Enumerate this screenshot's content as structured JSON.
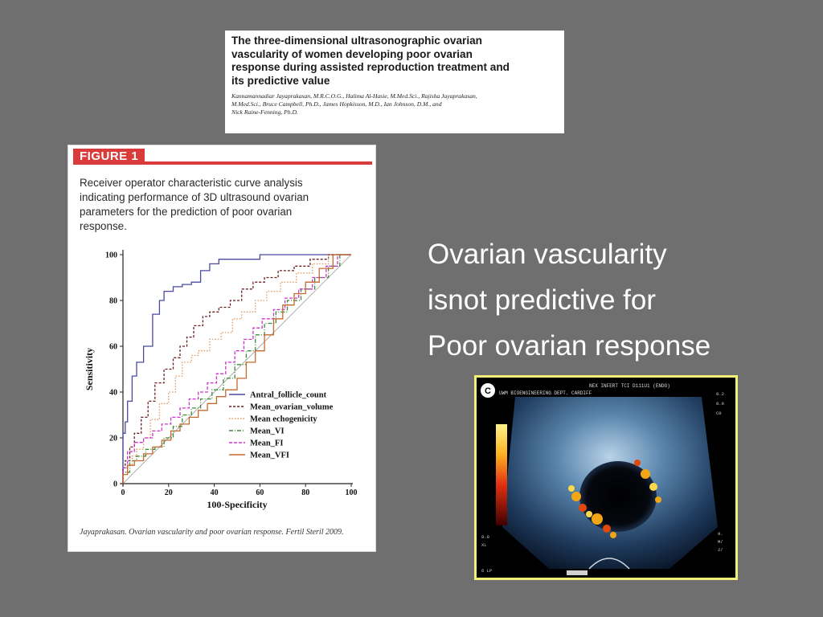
{
  "paper": {
    "title": "The three-dimensional ultrasonographic ovarian\nvascularity of women developing poor ovarian\nresponse during assisted reproduction treatment and\nits predictive value",
    "authors": "Kannamannadiar Jayaprakasan, M.R.C.O.G., Halima Al-Hasie, M.Med.Sci., Rajisha Jayaprakasan,\nM.Med.Sci., Bruce Campbell, Ph.D., James Hopkisson, M.D., Ian Johnson, D.M., and\nNick Raine-Fenning, Ph.D."
  },
  "figure": {
    "label": "FIGURE 1",
    "caption": "Receiver operator characteristic curve analysis\nindicating performance of 3D ultrasound ovarian\nparameters for the prediction of poor ovarian\nresponse.",
    "credit": "Jayaprakasan. Ovarian vascularity and poor ovarian response. Fertil Steril 2009.",
    "accent_color": "#d93a3a"
  },
  "chart_data": {
    "type": "line",
    "title": "",
    "xlabel": "100-Specificity",
    "ylabel": "Sensitivity",
    "xlim": [
      0,
      100
    ],
    "ylim": [
      0,
      100
    ],
    "x_ticks": [
      0,
      20,
      40,
      60,
      80,
      100
    ],
    "y_ticks": [
      0,
      20,
      40,
      60,
      80,
      100
    ],
    "grid": false,
    "diagonal_reference": true,
    "legend_position": "bottom-right",
    "series": [
      {
        "name": "Antral_follicle_count",
        "color": "#4a4aa0",
        "dash": "solid",
        "points": [
          [
            0,
            0
          ],
          [
            0,
            12
          ],
          [
            1,
            22
          ],
          [
            2,
            27
          ],
          [
            4,
            36
          ],
          [
            6,
            47
          ],
          [
            9,
            53
          ],
          [
            13,
            60
          ],
          [
            16,
            74
          ],
          [
            18,
            80
          ],
          [
            22,
            84
          ],
          [
            26,
            86
          ],
          [
            30,
            87
          ],
          [
            34,
            88
          ],
          [
            38,
            93
          ],
          [
            42,
            96
          ],
          [
            46,
            98
          ],
          [
            60,
            98
          ],
          [
            70,
            100
          ],
          [
            90,
            100
          ],
          [
            100,
            100
          ]
        ]
      },
      {
        "name": "Mean_ovarian_volume",
        "color": "#6a2020",
        "dash": "3,2",
        "points": [
          [
            0,
            0
          ],
          [
            1,
            7
          ],
          [
            3,
            10
          ],
          [
            5,
            16
          ],
          [
            8,
            22
          ],
          [
            11,
            29
          ],
          [
            14,
            36
          ],
          [
            18,
            44
          ],
          [
            22,
            50
          ],
          [
            25,
            55
          ],
          [
            28,
            60
          ],
          [
            31,
            64
          ],
          [
            35,
            69
          ],
          [
            38,
            73
          ],
          [
            42,
            75
          ],
          [
            47,
            77
          ],
          [
            52,
            80
          ],
          [
            57,
            85
          ],
          [
            62,
            88
          ],
          [
            68,
            90
          ],
          [
            75,
            93
          ],
          [
            82,
            95
          ],
          [
            90,
            98
          ],
          [
            100,
            100
          ]
        ]
      },
      {
        "name": "Mean echogenicity",
        "color": "#e0955a",
        "dash": "1.5,2",
        "points": [
          [
            0,
            0
          ],
          [
            2,
            5
          ],
          [
            4,
            8
          ],
          [
            6,
            12
          ],
          [
            9,
            15
          ],
          [
            12,
            20
          ],
          [
            16,
            28
          ],
          [
            20,
            35
          ],
          [
            23,
            40
          ],
          [
            26,
            47
          ],
          [
            30,
            53
          ],
          [
            33,
            56
          ],
          [
            38,
            58
          ],
          [
            43,
            63
          ],
          [
            48,
            66
          ],
          [
            52,
            72
          ],
          [
            58,
            75
          ],
          [
            63,
            80
          ],
          [
            69,
            84
          ],
          [
            76,
            88
          ],
          [
            83,
            92
          ],
          [
            90,
            96
          ],
          [
            100,
            100
          ]
        ]
      },
      {
        "name": "Mean_VI",
        "color": "#3a8a3a",
        "dash": "5,2,1,2",
        "points": [
          [
            0,
            0
          ],
          [
            3,
            5
          ],
          [
            6,
            10
          ],
          [
            10,
            12
          ],
          [
            14,
            15
          ],
          [
            18,
            16
          ],
          [
            22,
            20
          ],
          [
            26,
            25
          ],
          [
            30,
            30
          ],
          [
            34,
            33
          ],
          [
            39,
            37
          ],
          [
            44,
            41
          ],
          [
            49,
            46
          ],
          [
            54,
            52
          ],
          [
            58,
            58
          ],
          [
            62,
            65
          ],
          [
            67,
            70
          ],
          [
            72,
            75
          ],
          [
            78,
            80
          ],
          [
            84,
            85
          ],
          [
            90,
            90
          ],
          [
            95,
            95
          ],
          [
            100,
            100
          ]
        ]
      },
      {
        "name": "Mean_FI",
        "color": "#cc33cc",
        "dash": "4,2",
        "points": [
          [
            0,
            0
          ],
          [
            2,
            7
          ],
          [
            5,
            14
          ],
          [
            9,
            18
          ],
          [
            13,
            20
          ],
          [
            17,
            23
          ],
          [
            21,
            26
          ],
          [
            25,
            29
          ],
          [
            29,
            33
          ],
          [
            33,
            37
          ],
          [
            37,
            40
          ],
          [
            41,
            44
          ],
          [
            45,
            48
          ],
          [
            49,
            53
          ],
          [
            53,
            58
          ],
          [
            57,
            63
          ],
          [
            61,
            68
          ],
          [
            66,
            72
          ],
          [
            71,
            76
          ],
          [
            77,
            81
          ],
          [
            83,
            85
          ],
          [
            89,
            90
          ],
          [
            94,
            95
          ],
          [
            100,
            100
          ]
        ]
      },
      {
        "name": "Mean_VFI",
        "color": "#c56a2e",
        "dash": "solid",
        "points": [
          [
            0,
            0
          ],
          [
            2,
            4
          ],
          [
            5,
            8
          ],
          [
            9,
            10
          ],
          [
            13,
            13
          ],
          [
            17,
            16
          ],
          [
            21,
            19
          ],
          [
            25,
            23
          ],
          [
            29,
            26
          ],
          [
            33,
            29
          ],
          [
            37,
            32
          ],
          [
            41,
            35
          ],
          [
            45,
            38
          ],
          [
            50,
            41
          ],
          [
            54,
            46
          ],
          [
            58,
            53
          ],
          [
            62,
            58
          ],
          [
            66,
            65
          ],
          [
            70,
            72
          ],
          [
            75,
            78
          ],
          [
            80,
            83
          ],
          [
            86,
            88
          ],
          [
            92,
            94
          ],
          [
            100,
            100
          ]
        ]
      }
    ]
  },
  "slide": {
    "lines": [
      "Ovarian vascularity",
      "isnot predictive for",
      "Poor ovarian response"
    ]
  },
  "ultrasound": {
    "frame_color": "#f3f07a",
    "header_text": "NEX INFERT TCI D111U1 (ENDO)",
    "dept_text": "UWM BIOENGINEERING DEPT. CARDIFF",
    "panel_letter": "C"
  }
}
